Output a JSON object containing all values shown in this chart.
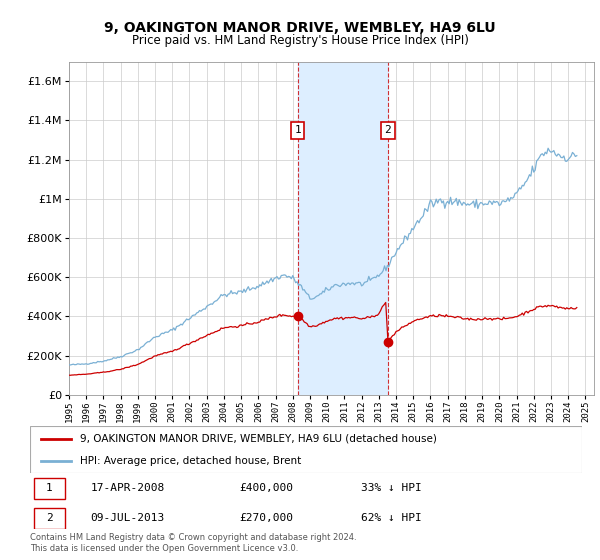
{
  "title": "9, OAKINGTON MANOR DRIVE, WEMBLEY, HA9 6LU",
  "subtitle": "Price paid vs. HM Land Registry's House Price Index (HPI)",
  "legend_label_red": "9, OAKINGTON MANOR DRIVE, WEMBLEY, HA9 6LU (detached house)",
  "legend_label_blue": "HPI: Average price, detached house, Brent",
  "transaction1_date": "17-APR-2008",
  "transaction1_price": "£400,000",
  "transaction1_hpi": "33% ↓ HPI",
  "transaction2_date": "09-JUL-2013",
  "transaction2_price": "£270,000",
  "transaction2_hpi": "62% ↓ HPI",
  "footer": "Contains HM Land Registry data © Crown copyright and database right 2024.\nThis data is licensed under the Open Government Licence v3.0.",
  "red_color": "#cc0000",
  "blue_color": "#7ab0d4",
  "shade_color": "#ddeeff",
  "marker1_x": 2008.29,
  "marker2_x": 2013.53,
  "transaction1_price_val": 400000,
  "transaction2_price_val": 270000,
  "ylim_max": 1700000,
  "xlim_min": 1995,
  "xlim_max": 2025.5
}
